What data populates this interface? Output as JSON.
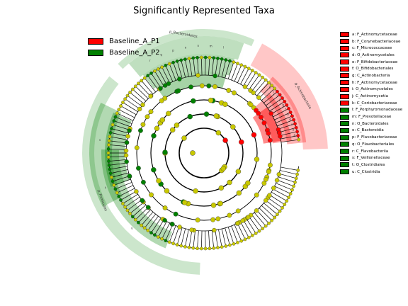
{
  "title": "Significantly Represented Taxa",
  "groups": [
    {
      "label": "Baseline_A_P1",
      "color": "#ff0000"
    },
    {
      "label": "Baseline_A_P2",
      "color": "#008000"
    }
  ],
  "node_color_default": "#c8c800",
  "clades": [
    {
      "label": "a: F_Actinomycetaceae",
      "group": 0
    },
    {
      "label": "b: F_Corynebacteriaceae",
      "group": 0
    },
    {
      "label": "c: F_Micrococcaceae",
      "group": 0
    },
    {
      "label": "d: O_Actinomycetales",
      "group": 0
    },
    {
      "label": "e: F_Bifidobacteriaceae",
      "group": 0
    },
    {
      "label": "f: O_Bifidobacteriales",
      "group": 0
    },
    {
      "label": "g: C_Actinobacteria",
      "group": 0
    },
    {
      "label": "h: F_Actinomycetaceae",
      "group": 0
    },
    {
      "label": "i: O_Actinomycetales",
      "group": 0
    },
    {
      "label": "j: C_Actinomycetia",
      "group": 0
    },
    {
      "label": "k: C_Coriobacteriaceae",
      "group": 0
    },
    {
      "label": "l: F_Porphyromonadaceae",
      "group": 1
    },
    {
      "label": "m: F_Prevotellaceae",
      "group": 1
    },
    {
      "label": "n: O_Bacteroidales",
      "group": 1
    },
    {
      "label": "o: C_Bacteroidia",
      "group": 1
    },
    {
      "label": "p: F_Flavobacteriaceae",
      "group": 1
    },
    {
      "label": "q: O_Flavobacteriales",
      "group": 1
    },
    {
      "label": "r: C_Flavobacteriia",
      "group": 1
    },
    {
      "label": "s: F_Veillonellaceae",
      "group": 1
    },
    {
      "label": "t: O_Clostridiales",
      "group": 1
    },
    {
      "label": "u: C_Clostridia",
      "group": 1
    }
  ],
  "phylum_labels": [
    {
      "text": "p_Bacteroidetes",
      "group": 1
    },
    {
      "text": "p_Actinobacteria",
      "group": 0
    },
    {
      "text": "p_Firmicutes",
      "group": 1
    }
  ],
  "sector_letters": {
    "bacteroidetes": [
      "l",
      "m",
      "n",
      "o",
      "p",
      "q",
      "r"
    ],
    "actinobacteria": [
      "a",
      "b",
      "c",
      "d",
      "e",
      "f",
      "g",
      "h",
      "i",
      "j",
      "k"
    ],
    "firmicutes": [
      "s",
      "t",
      "u"
    ]
  }
}
